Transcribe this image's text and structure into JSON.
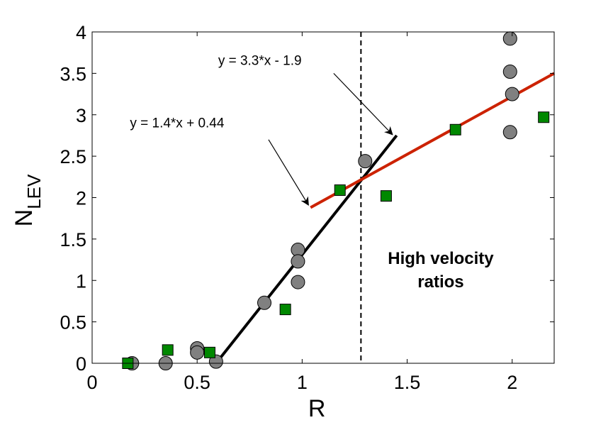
{
  "chart_data": {
    "type": "scatter",
    "title": "",
    "xlabel": "R",
    "ylabel_main": "N",
    "ylabel_sub": "LEV",
    "xlim": [
      0,
      2.2
    ],
    "ylim": [
      0,
      4
    ],
    "xticks": [
      0,
      0.5,
      1,
      1.5,
      2
    ],
    "xtick_labels": [
      "0",
      "0.5",
      "1",
      "1.5",
      "2"
    ],
    "yticks": [
      0,
      0.5,
      1,
      1.5,
      2,
      2.5,
      3,
      3.5,
      4
    ],
    "ytick_labels": [
      "0",
      "0.5",
      "1",
      "1.5",
      "2",
      "2.5",
      "3",
      "3.5",
      "4"
    ],
    "grid": false,
    "legend": false,
    "series": [
      {
        "name": "gray circles",
        "marker": "circle",
        "color": "#808080",
        "points": [
          {
            "x": 0.19,
            "y": 0.0
          },
          {
            "x": 0.35,
            "y": 0.0
          },
          {
            "x": 0.5,
            "y": 0.18
          },
          {
            "x": 0.5,
            "y": 0.13
          },
          {
            "x": 0.59,
            "y": 0.02
          },
          {
            "x": 0.82,
            "y": 0.73
          },
          {
            "x": 0.98,
            "y": 1.37
          },
          {
            "x": 0.98,
            "y": 1.23
          },
          {
            "x": 0.98,
            "y": 0.98
          },
          {
            "x": 1.3,
            "y": 2.44
          },
          {
            "x": 1.99,
            "y": 3.92
          },
          {
            "x": 1.99,
            "y": 3.52
          },
          {
            "x": 2.0,
            "y": 3.25
          },
          {
            "x": 1.99,
            "y": 2.79
          }
        ]
      },
      {
        "name": "green squares",
        "marker": "square",
        "color": "#008800",
        "points": [
          {
            "x": 0.17,
            "y": 0.0
          },
          {
            "x": 0.36,
            "y": 0.16
          },
          {
            "x": 0.56,
            "y": 0.13
          },
          {
            "x": 0.92,
            "y": 0.65
          },
          {
            "x": 1.18,
            "y": 2.09
          },
          {
            "x": 1.4,
            "y": 2.02
          },
          {
            "x": 1.73,
            "y": 2.82
          },
          {
            "x": 2.15,
            "y": 2.97
          }
        ]
      }
    ],
    "lines": [
      {
        "name": "low-R fit",
        "color": "#000000",
        "x1": 0.59,
        "y1": 0.0,
        "x2": 1.45,
        "y2": 2.75
      },
      {
        "name": "high-R fit",
        "color": "#cc2200",
        "x1": 1.04,
        "y1": 1.88,
        "x2": 2.2,
        "y2": 3.5
      }
    ],
    "vline": {
      "x": 1.28,
      "style": "dashed"
    },
    "annotations": [
      {
        "text": "y = 3.3*x - 1.9",
        "tx": 0.6,
        "ty": 3.6,
        "ax1": 1.15,
        "ay1": 3.5,
        "ax2": 1.43,
        "ay2": 2.76
      },
      {
        "text": "y = 1.4*x + 0.44",
        "tx": 0.18,
        "ty": 2.85,
        "ax1": 0.84,
        "ay1": 2.7,
        "ax2": 1.03,
        "ay2": 1.91
      }
    ],
    "region_label_lines": [
      "High velocity",
      "ratios"
    ],
    "region_label_pos": {
      "x": 1.66,
      "y": 1.2
    }
  }
}
